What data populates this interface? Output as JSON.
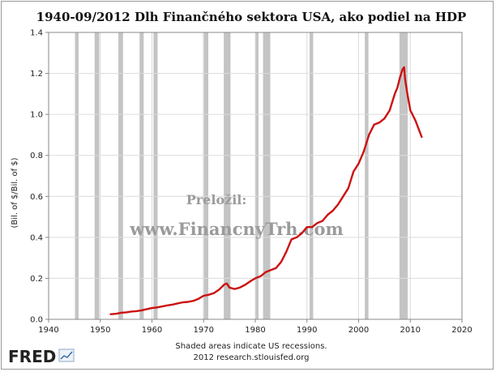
{
  "header": {
    "title": "1940-09/2012 Dlh Finančného sektora USA, ako podiel na HDP"
  },
  "watermark": {
    "line1": "Preložil:",
    "line2": "www.FinancnyTrh.com"
  },
  "footer": {
    "note": "Shaded areas indicate US recessions.",
    "source": "2012 research.stlouisfed.org",
    "logo_text": "FRED"
  },
  "colors": {
    "series": "#cc1111",
    "recession": "#c4c4c4",
    "grid": "#dcdcdc"
  },
  "chart_data": {
    "type": "line",
    "title": "1940-09/2012 Dlh Finančného sektora USA, ako podiel na HDP",
    "ylabel": "(Bil. of $/Bil. of $)",
    "xlabel": "",
    "xlim": [
      1940,
      2020
    ],
    "ylim": [
      0,
      1.4
    ],
    "x_ticks": [
      "1940",
      "1950",
      "1960",
      "1970",
      "1980",
      "1990",
      "2000",
      "2010",
      "2020"
    ],
    "y_ticks": [
      "0.0",
      "0.2",
      "0.4",
      "0.6",
      "0.8",
      "1.0",
      "1.2",
      "1.4"
    ],
    "grid": true,
    "recessions": [
      [
        1945.1,
        1945.8
      ],
      [
        1948.9,
        1949.8
      ],
      [
        1953.5,
        1954.4
      ],
      [
        1957.6,
        1958.4
      ],
      [
        1960.3,
        1961.1
      ],
      [
        1969.9,
        1970.9
      ],
      [
        1973.9,
        1975.2
      ],
      [
        1980.0,
        1980.6
      ],
      [
        1981.5,
        1982.9
      ],
      [
        1990.5,
        1991.2
      ],
      [
        2001.2,
        2001.9
      ],
      [
        2007.9,
        2009.5
      ]
    ],
    "series": [
      {
        "x": [
          1952,
          1953,
          1954,
          1955,
          1956,
          1957,
          1958,
          1959,
          1960,
          1961,
          1962,
          1963,
          1964,
          1965,
          1966,
          1967,
          1968,
          1969,
          1970,
          1971,
          1972,
          1973,
          1974,
          1974.5,
          1975,
          1976,
          1977,
          1978,
          1979,
          1980,
          1981,
          1982,
          1983,
          1984,
          1985,
          1986,
          1987,
          1988,
          1989,
          1990,
          1991,
          1992,
          1993,
          1994,
          1995,
          1996,
          1997,
          1998,
          1999,
          2000,
          2001,
          2002,
          2003,
          2004,
          2005,
          2006,
          2007,
          2007.5,
          2008,
          2008.5,
          2008.8,
          2009,
          2009.5,
          2010,
          2011,
          2012.2
        ],
        "values": [
          0.025,
          0.027,
          0.032,
          0.034,
          0.038,
          0.04,
          0.044,
          0.05,
          0.055,
          0.058,
          0.063,
          0.068,
          0.072,
          0.078,
          0.083,
          0.085,
          0.09,
          0.1,
          0.115,
          0.12,
          0.128,
          0.145,
          0.17,
          0.175,
          0.155,
          0.148,
          0.155,
          0.168,
          0.185,
          0.2,
          0.21,
          0.23,
          0.24,
          0.25,
          0.28,
          0.33,
          0.39,
          0.4,
          0.42,
          0.45,
          0.45,
          0.47,
          0.48,
          0.51,
          0.53,
          0.56,
          0.6,
          0.64,
          0.72,
          0.76,
          0.82,
          0.9,
          0.95,
          0.96,
          0.98,
          1.02,
          1.1,
          1.13,
          1.18,
          1.22,
          1.23,
          1.17,
          1.09,
          1.02,
          0.97,
          0.89
        ]
      }
    ]
  }
}
